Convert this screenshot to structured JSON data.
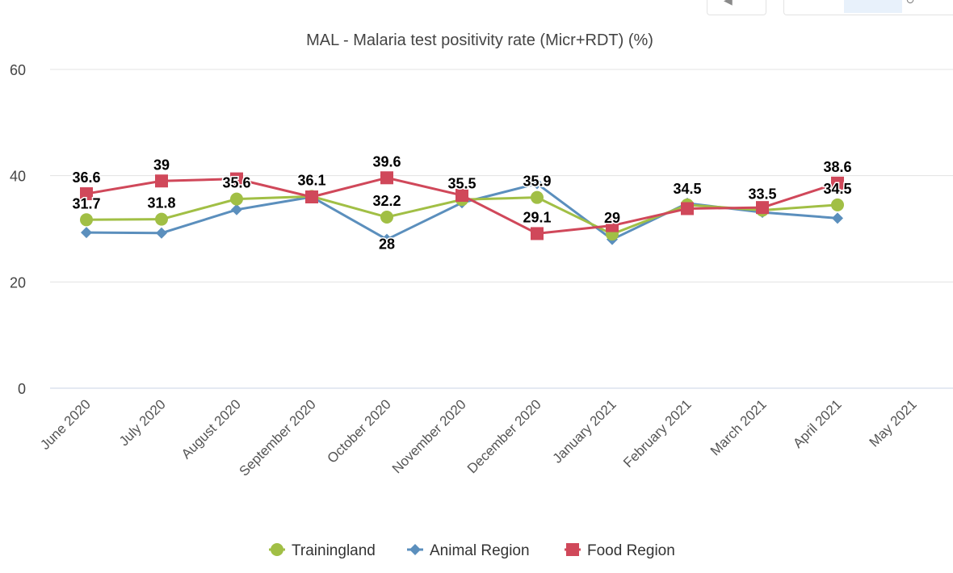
{
  "chart_data": {
    "type": "line",
    "title": "MAL - Malaria test positivity rate (Micr+RDT) (%)",
    "categories": [
      "June 2020",
      "July 2020",
      "August 2020",
      "September 2020",
      "October 2020",
      "November 2020",
      "December 2020",
      "January 2021",
      "February 2021",
      "March 2021",
      "April 2021",
      "May 2021"
    ],
    "ylim": [
      0,
      60
    ],
    "yticks": [
      "0",
      "20",
      "40",
      "60"
    ],
    "grid": true,
    "legend_position": "bottom",
    "series": [
      {
        "name": "Trainingland",
        "color": "#a1bf45",
        "marker": "circle",
        "values": [
          31.7,
          31.8,
          35.6,
          36.1,
          32.2,
          35.5,
          35.9,
          29,
          34.5,
          33.5,
          34.5,
          null
        ],
        "labels": [
          "31.7",
          "31.8",
          "35.6",
          "36.1",
          "32.2",
          "35.5",
          "35.9",
          "29",
          "34.5",
          "33.5",
          "34.5",
          ""
        ]
      },
      {
        "name": "Animal Region",
        "color": "#5b8fbd",
        "marker": "diamond",
        "values": [
          29.3,
          29.2,
          33.6,
          36.0,
          28,
          34.9,
          38.5,
          28,
          34.8,
          33.1,
          32.0,
          null
        ],
        "labels": [
          "",
          "",
          "",
          "",
          "28",
          "",
          "",
          "",
          "",
          "",
          "",
          ""
        ]
      },
      {
        "name": "Food Region",
        "color": "#d0485a",
        "marker": "square",
        "values": [
          36.6,
          39,
          39.4,
          36.0,
          39.6,
          36.3,
          29.1,
          30.6,
          33.8,
          34.0,
          38.6,
          null
        ],
        "labels": [
          "36.6",
          "39",
          "",
          "",
          "39.6",
          "",
          "29.1",
          "",
          "",
          "",
          "38.6",
          ""
        ]
      }
    ]
  }
}
